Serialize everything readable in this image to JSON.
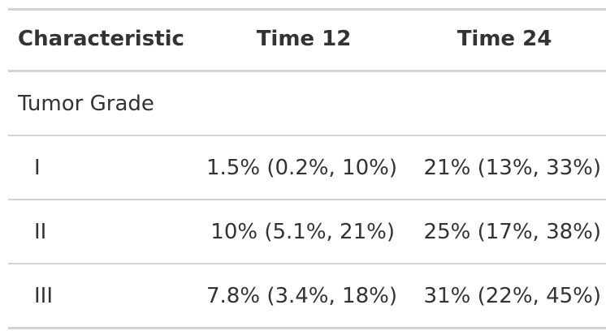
{
  "table": {
    "headers": [
      "Characteristic",
      "Time 12",
      "Time 24"
    ],
    "group_label": "Tumor Grade",
    "rows": [
      {
        "label": "I",
        "time12": "1.5% (0.2%, 10%)",
        "time24": "21% (13%, 33%)"
      },
      {
        "label": "II",
        "time12": "10% (5.1%, 21%)",
        "time24": "25% (17%, 38%)"
      },
      {
        "label": "III",
        "time12": "7.8% (3.4%, 18%)",
        "time24": "31% (22%, 45%)"
      }
    ]
  },
  "colors": {
    "text": "#333333",
    "rule": "#d3d3d3",
    "background": "#ffffff"
  }
}
